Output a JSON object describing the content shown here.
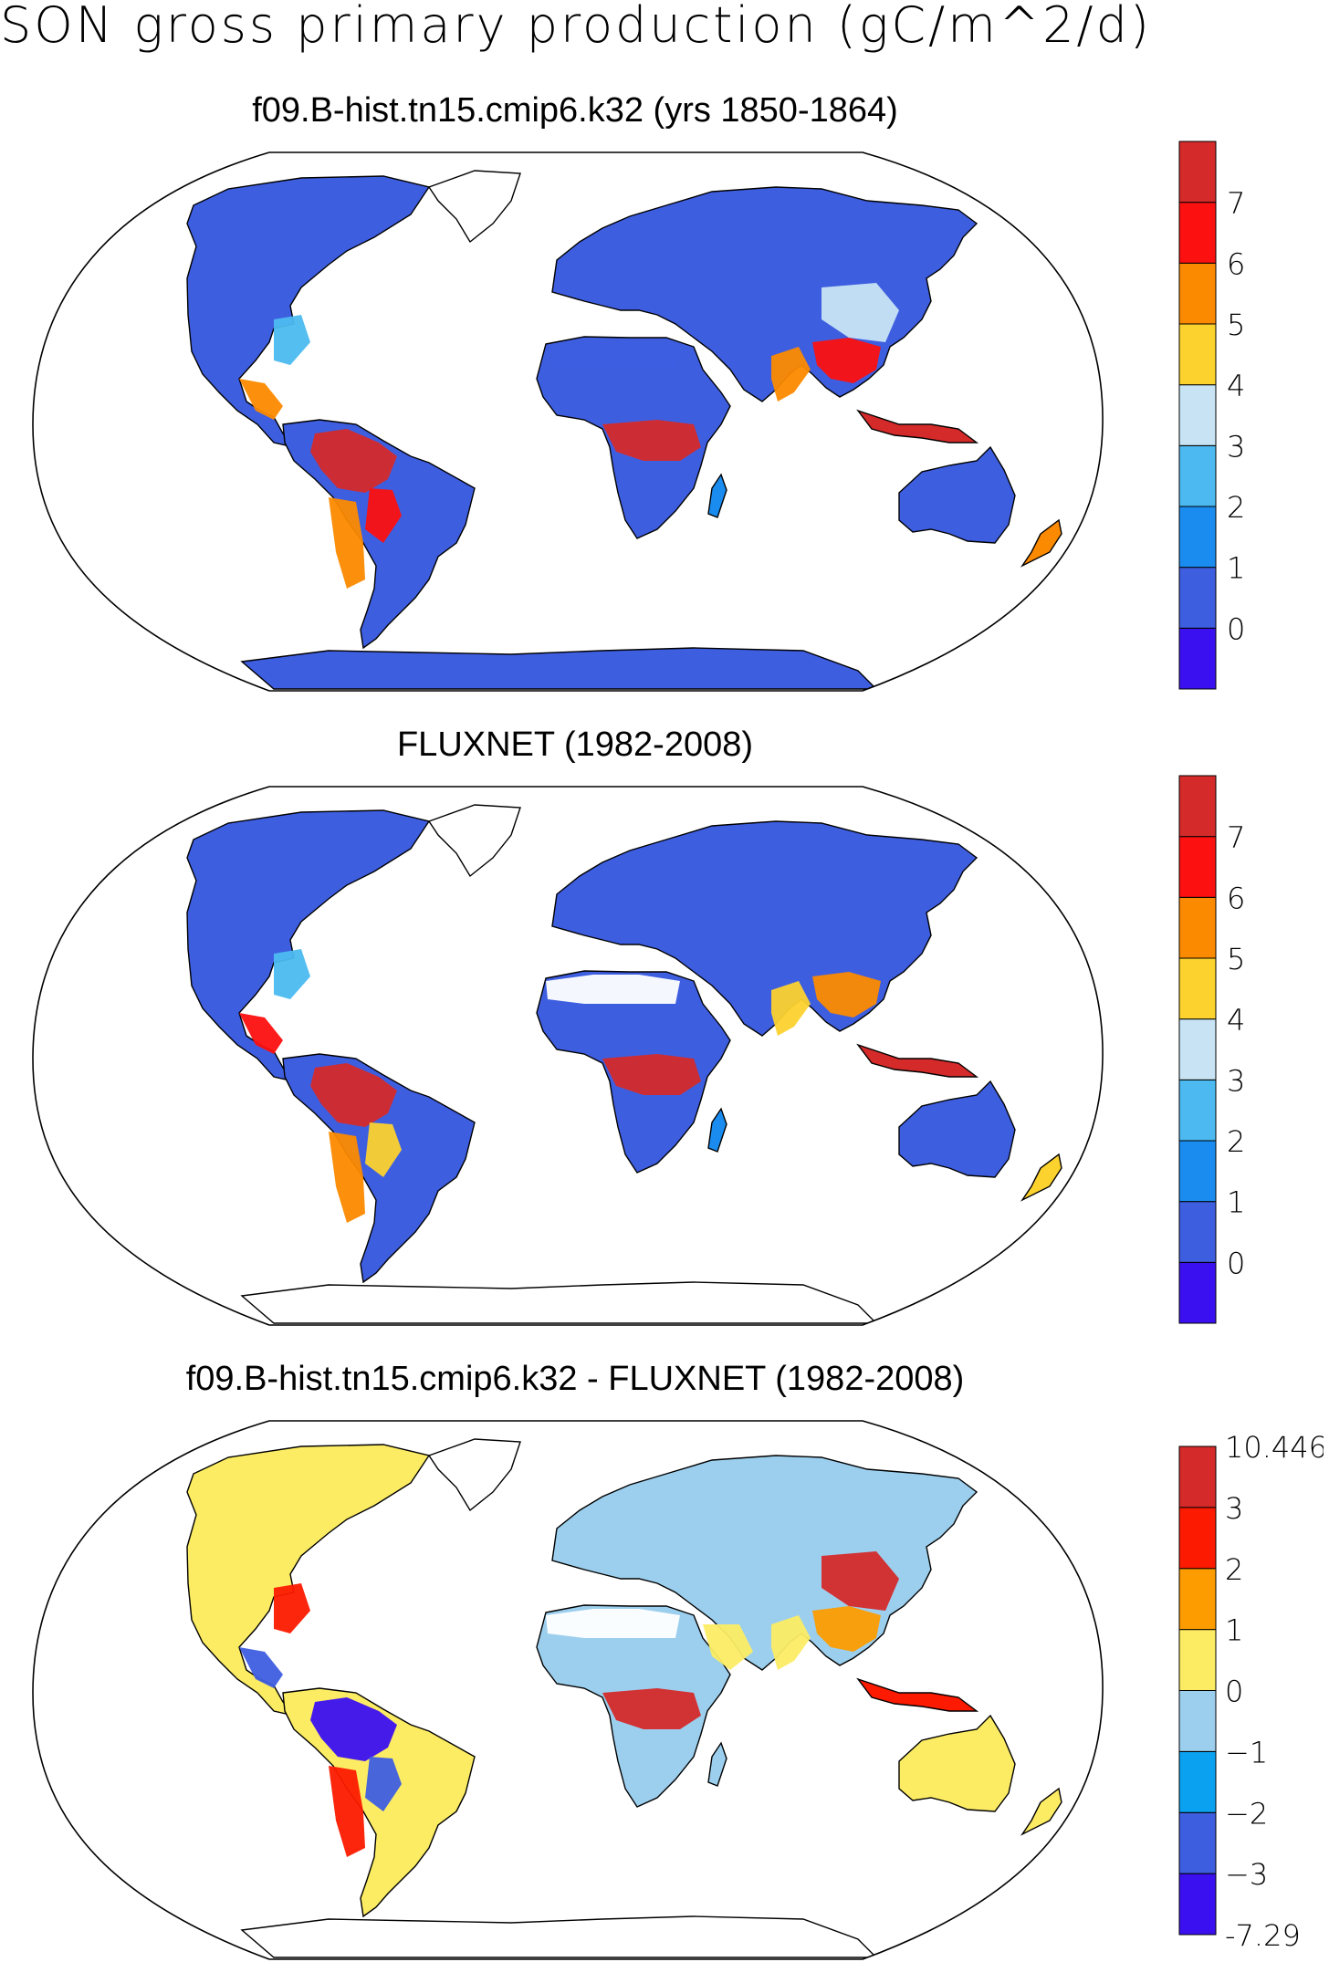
{
  "title": "SON gross primary production (gC/m^2/d)",
  "panels": [
    {
      "id": "model",
      "title": "f09.B-hist.tn15.cmip6.k32 (yrs 1850-1864)",
      "colorbar": {
        "colors": [
          "#3b10f0",
          "#3e5ee0",
          "#1a8cf0",
          "#4cbaf0",
          "#c8e4f4",
          "#fcd22e",
          "#fc8a00",
          "#fc1010",
          "#d42a2a"
        ],
        "labels": [
          "0",
          "1",
          "2",
          "3",
          "4",
          "5",
          "6",
          "7"
        ]
      }
    },
    {
      "id": "obs",
      "title": "FLUXNET (1982-2008)",
      "colorbar": {
        "colors": [
          "#3b10f0",
          "#3e5ee0",
          "#1a8cf0",
          "#4cbaf0",
          "#c8e4f4",
          "#fcd22e",
          "#fc8a00",
          "#fc1010",
          "#d42a2a"
        ],
        "labels": [
          "0",
          "1",
          "2",
          "3",
          "4",
          "5",
          "6",
          "7"
        ]
      }
    },
    {
      "id": "diff",
      "title": "f09.B-hist.tn15.cmip6.k32 - FLUXNET (1982-2008)",
      "colorbar": {
        "colors": [
          "#3b10f0",
          "#3e5ee0",
          "#0aa2f0",
          "#9ccfee",
          "#fcec64",
          "#fc9c00",
          "#fc1a00",
          "#d42a2a"
        ],
        "labels": [
          "-7.29",
          "−3",
          "−2",
          "−1",
          "0",
          "1",
          "2",
          "3",
          "10.446"
        ]
      }
    }
  ]
}
